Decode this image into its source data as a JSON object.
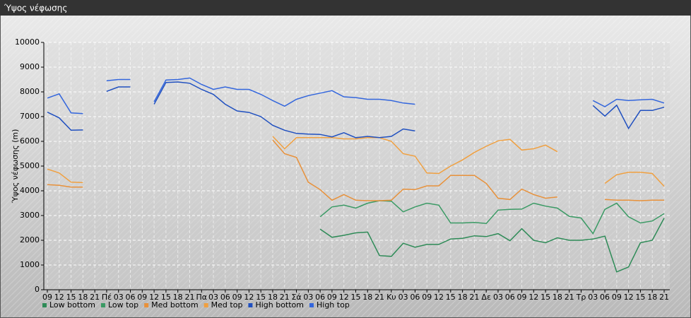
{
  "chart_data": {
    "type": "line",
    "title": "Ύψος νέφωσης",
    "y_label": "Ύψος νέφωσης (m)",
    "categories": [
      "09",
      "12",
      "15",
      "18",
      "21",
      "Πέ",
      "03",
      "06",
      "09",
      "12",
      "15",
      "18",
      "21",
      "Πα",
      "03",
      "06",
      "09",
      "12",
      "15",
      "18",
      "21",
      "Σά",
      "03",
      "06",
      "09",
      "12",
      "15",
      "18",
      "21",
      "Κυ",
      "03",
      "06",
      "09",
      "12",
      "15",
      "18",
      "21",
      "Δε",
      "03",
      "06",
      "09",
      "12",
      "15",
      "18",
      "21",
      "Τρ",
      "03",
      "06",
      "09",
      "12",
      "15",
      "18",
      "21"
    ],
    "ylim": [
      0,
      10000
    ],
    "yticks": [
      0,
      1000,
      2000,
      3000,
      4000,
      5000,
      6000,
      7000,
      8000,
      9000,
      10000
    ],
    "grid": true,
    "series": [
      {
        "name": "Low bottom",
        "color": "#2e8b57",
        "values": [
          null,
          null,
          null,
          null,
          null,
          null,
          null,
          null,
          null,
          null,
          null,
          null,
          null,
          null,
          null,
          null,
          null,
          null,
          null,
          null,
          null,
          null,
          null,
          2450,
          2120,
          2200,
          2300,
          2330,
          1380,
          1350,
          1880,
          1720,
          1830,
          1830,
          2050,
          2080,
          2180,
          2150,
          2270,
          1980,
          2470,
          2000,
          1900,
          2100,
          2000,
          2000,
          2050,
          2170,
          720,
          920,
          1900,
          2000,
          2900
        ]
      },
      {
        "name": "Low top",
        "color": "#3a9a64",
        "values": [
          null,
          null,
          null,
          null,
          null,
          null,
          null,
          null,
          null,
          null,
          null,
          null,
          null,
          null,
          null,
          null,
          null,
          null,
          null,
          null,
          null,
          null,
          null,
          2950,
          3350,
          3420,
          3300,
          3500,
          3600,
          3580,
          3150,
          3350,
          3500,
          3420,
          2700,
          2700,
          2720,
          2680,
          3220,
          3250,
          3260,
          3500,
          3380,
          3300,
          2970,
          2900,
          2270,
          3250,
          3500,
          2950,
          2700,
          2780,
          3080
        ]
      },
      {
        "name": "Med bottom",
        "color": "#e8913a",
        "values": [
          4250,
          4220,
          4150,
          4150,
          null,
          null,
          null,
          null,
          null,
          null,
          null,
          null,
          null,
          null,
          null,
          null,
          null,
          null,
          null,
          6050,
          5500,
          5350,
          4350,
          4050,
          3620,
          3850,
          3620,
          3600,
          3600,
          3620,
          4070,
          4050,
          4200,
          4200,
          4620,
          4620,
          4620,
          4300,
          3700,
          3650,
          4070,
          3850,
          3700,
          3750,
          null,
          null,
          null,
          3650,
          3620,
          3620,
          3600,
          3620,
          3620
        ]
      },
      {
        "name": "Med top",
        "color": "#f0a040",
        "values": [
          4880,
          4720,
          4350,
          4330,
          null,
          null,
          null,
          null,
          null,
          null,
          null,
          null,
          null,
          null,
          null,
          null,
          null,
          null,
          null,
          6200,
          5700,
          6150,
          6150,
          6150,
          6150,
          6100,
          6100,
          6150,
          6150,
          6000,
          5500,
          5400,
          4720,
          4700,
          5000,
          5250,
          5550,
          5800,
          6020,
          6080,
          5650,
          5700,
          5850,
          5580,
          null,
          null,
          null,
          4300,
          4650,
          4750,
          4750,
          4700,
          4180
        ]
      },
      {
        "name": "High bottom",
        "color": "#2050c0",
        "values": [
          7180,
          6950,
          6450,
          6460,
          null,
          8020,
          8200,
          8200,
          null,
          7500,
          8380,
          8400,
          8350,
          8100,
          7900,
          7500,
          7230,
          7170,
          7000,
          6650,
          6450,
          6320,
          6290,
          6280,
          6180,
          6350,
          6150,
          6200,
          6150,
          6200,
          6500,
          6420,
          null,
          null,
          null,
          null,
          null,
          null,
          null,
          null,
          null,
          null,
          null,
          null,
          null,
          null,
          7450,
          7020,
          7460,
          6520,
          7250,
          7250,
          7380
        ]
      },
      {
        "name": "High top",
        "color": "#3366dd",
        "values": [
          7750,
          7920,
          7150,
          7120,
          null,
          8450,
          8500,
          8500,
          null,
          7600,
          8480,
          8500,
          8560,
          8300,
          8100,
          8200,
          8100,
          8100,
          7900,
          7650,
          7420,
          7700,
          7850,
          7950,
          8050,
          7800,
          7770,
          7700,
          7700,
          7650,
          7550,
          7500,
          null,
          null,
          null,
          null,
          null,
          null,
          null,
          null,
          null,
          null,
          null,
          null,
          null,
          null,
          7650,
          7400,
          7700,
          7650,
          7680,
          7700,
          7550
        ]
      }
    ]
  }
}
